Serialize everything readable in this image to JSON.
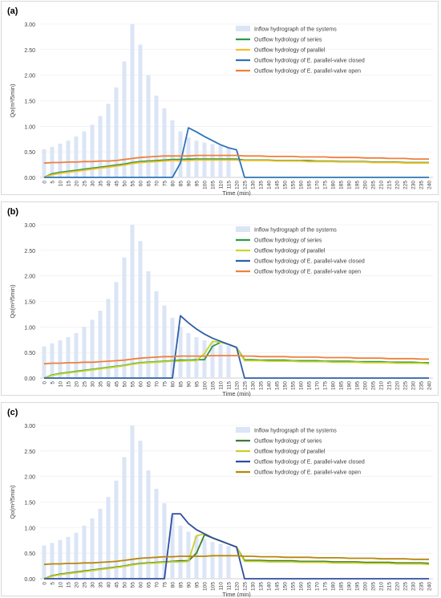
{
  "chart_data": [
    {
      "type": "bar",
      "panel_label": "(a)",
      "xlabel": "Time (min)",
      "ylabel": "Qo(m³/5min)",
      "ylim": [
        0,
        3
      ],
      "yticks": [
        "0.00",
        "0.50",
        "1.00",
        "1.50",
        "2.00",
        "2.50",
        "3.00"
      ],
      "x": [
        0,
        5,
        10,
        15,
        20,
        25,
        30,
        35,
        40,
        45,
        50,
        55,
        60,
        65,
        70,
        75,
        80,
        85,
        90,
        95,
        100,
        105,
        110,
        115,
        120,
        125,
        130,
        135,
        140,
        145,
        150,
        155,
        160,
        165,
        170,
        175,
        180,
        185,
        190,
        195,
        200,
        205,
        210,
        215,
        220,
        225,
        230,
        235,
        240
      ],
      "legend_position": "top-right",
      "series": [
        {
          "name": "Inflow hydrograph of the systems",
          "kind": "bar",
          "color": "#dbe5f5",
          "values": [
            0.55,
            0.6,
            0.66,
            0.72,
            0.8,
            0.9,
            1.03,
            1.2,
            1.44,
            1.76,
            2.27,
            3.0,
            2.6,
            2.0,
            1.6,
            1.35,
            1.12,
            0.9,
            0.78,
            0.72,
            0.68,
            0.65,
            0.62,
            0.58,
            null,
            null,
            null,
            null,
            null,
            null,
            null,
            null,
            null,
            null,
            null,
            null,
            null,
            null,
            null,
            null,
            null,
            null,
            null,
            null,
            null,
            null,
            null,
            null,
            null
          ]
        },
        {
          "name": "Outflow hydrology of series",
          "kind": "line",
          "color": "#2e9b45",
          "values": [
            0,
            0.07,
            0.1,
            0.12,
            0.14,
            0.16,
            0.18,
            0.2,
            0.22,
            0.24,
            0.26,
            0.29,
            0.31,
            0.32,
            0.33,
            0.34,
            0.35,
            0.35,
            0.36,
            0.36,
            0.36,
            0.36,
            0.36,
            0.36,
            0.36,
            0.34,
            0.34,
            0.34,
            0.34,
            0.33,
            0.33,
            0.33,
            0.33,
            0.33,
            0.32,
            0.32,
            0.32,
            0.31,
            0.31,
            0.31,
            0.31,
            0.3,
            0.3,
            0.3,
            0.3,
            0.29,
            0.29,
            0.29,
            0.29
          ]
        },
        {
          "name": "Outflow hydrology of parallel",
          "kind": "line",
          "color": "#f5bf2a",
          "values": [
            0,
            0.05,
            0.08,
            0.1,
            0.12,
            0.14,
            0.16,
            0.18,
            0.2,
            0.22,
            0.24,
            0.27,
            0.29,
            0.3,
            0.31,
            0.32,
            0.33,
            0.33,
            0.33,
            0.34,
            0.34,
            0.34,
            0.34,
            0.34,
            0.34,
            0.33,
            0.33,
            0.33,
            0.33,
            0.32,
            0.32,
            0.32,
            0.32,
            0.31,
            0.31,
            0.31,
            0.31,
            0.3,
            0.3,
            0.3,
            0.3,
            0.29,
            0.29,
            0.29,
            0.29,
            0.28,
            0.28,
            0.28,
            0.28
          ]
        },
        {
          "name": "Outflow hydrology of E. parallel-valve closed",
          "kind": "line",
          "color": "#2e75b6",
          "values": [
            0,
            0,
            0,
            0,
            0,
            0,
            0,
            0,
            0,
            0,
            0,
            0,
            0,
            0,
            0,
            0,
            0,
            0.28,
            0.97,
            0.89,
            0.8,
            0.72,
            0.64,
            0.58,
            0.54,
            0,
            0,
            0,
            0,
            0,
            0,
            0,
            0,
            0,
            0,
            0,
            0,
            0,
            0,
            0,
            0,
            0,
            0,
            0,
            0,
            0,
            0,
            0,
            0
          ]
        },
        {
          "name": "Outflow hydrology of E. parallel-valve open",
          "kind": "line",
          "color": "#f07f3c",
          "values": [
            0.28,
            0.29,
            0.29,
            0.3,
            0.3,
            0.31,
            0.31,
            0.32,
            0.32,
            0.33,
            0.35,
            0.37,
            0.39,
            0.4,
            0.41,
            0.42,
            0.42,
            0.42,
            0.42,
            0.43,
            0.43,
            0.43,
            0.43,
            0.43,
            0.43,
            0.42,
            0.42,
            0.42,
            0.41,
            0.41,
            0.41,
            0.41,
            0.4,
            0.4,
            0.4,
            0.4,
            0.39,
            0.39,
            0.39,
            0.39,
            0.38,
            0.38,
            0.38,
            0.37,
            0.37,
            0.37,
            0.36,
            0.36,
            0.36
          ]
        }
      ]
    },
    {
      "type": "bar",
      "panel_label": "(b)",
      "xlabel": "Time (min)",
      "ylabel": "Qo(m³/5min)",
      "ylim": [
        0,
        3
      ],
      "yticks": [
        "0.00",
        "0.50",
        "1.00",
        "1.50",
        "2.00",
        "2.50",
        "3.00"
      ],
      "x": [
        0,
        5,
        10,
        15,
        20,
        25,
        30,
        35,
        40,
        45,
        50,
        55,
        60,
        65,
        70,
        75,
        80,
        85,
        90,
        95,
        100,
        105,
        110,
        115,
        120,
        125,
        130,
        135,
        140,
        145,
        150,
        155,
        160,
        165,
        170,
        175,
        180,
        185,
        190,
        195,
        200,
        205,
        210,
        215,
        220,
        225,
        230,
        235,
        240
      ],
      "legend_position": "top-right",
      "series": [
        {
          "name": "Inflow hydrograph of the systems",
          "kind": "bar",
          "color": "#dbe5f5",
          "values": [
            0.62,
            0.68,
            0.74,
            0.8,
            0.88,
            1.0,
            1.14,
            1.32,
            1.55,
            1.88,
            2.36,
            3.0,
            2.68,
            2.09,
            1.7,
            1.42,
            1.18,
            1.0,
            0.88,
            0.8,
            0.74,
            0.7,
            0.66,
            0.63,
            null,
            null,
            null,
            null,
            null,
            null,
            null,
            null,
            null,
            null,
            null,
            null,
            null,
            null,
            null,
            null,
            null,
            null,
            null,
            null,
            null,
            null,
            null,
            null,
            null
          ]
        },
        {
          "name": "Outflow hydrology of series",
          "kind": "line",
          "color": "#2e9b45",
          "values": [
            0,
            0.06,
            0.09,
            0.11,
            0.13,
            0.15,
            0.17,
            0.19,
            0.21,
            0.23,
            0.25,
            0.28,
            0.3,
            0.31,
            0.32,
            0.33,
            0.34,
            0.35,
            0.35,
            0.36,
            0.36,
            0.62,
            0.7,
            0.66,
            0.6,
            0.36,
            0.36,
            0.35,
            0.35,
            0.35,
            0.35,
            0.34,
            0.34,
            0.34,
            0.34,
            0.33,
            0.33,
            0.33,
            0.33,
            0.32,
            0.32,
            0.32,
            0.32,
            0.31,
            0.31,
            0.31,
            0.31,
            0.3,
            0.3
          ]
        },
        {
          "name": "Outflow hydrology of parallel",
          "kind": "line",
          "color": "#c9d62c",
          "values": [
            0,
            0.05,
            0.08,
            0.1,
            0.12,
            0.14,
            0.16,
            0.18,
            0.2,
            0.22,
            0.24,
            0.27,
            0.29,
            0.3,
            0.31,
            0.32,
            0.33,
            0.33,
            0.34,
            0.34,
            0.48,
            0.72,
            0.7,
            0.66,
            0.6,
            0.34,
            0.34,
            0.34,
            0.33,
            0.33,
            0.33,
            0.33,
            0.32,
            0.32,
            0.32,
            0.32,
            0.31,
            0.31,
            0.31,
            0.31,
            0.3,
            0.3,
            0.3,
            0.3,
            0.29,
            0.29,
            0.29,
            0.29,
            0.28
          ]
        },
        {
          "name": "Outflow hydrology of E. parallel-valve closed",
          "kind": "line",
          "color": "#2e5fa8",
          "values": [
            0,
            0,
            0,
            0,
            0,
            0,
            0,
            0,
            0,
            0,
            0,
            0,
            0,
            0,
            0,
            0,
            0,
            1.22,
            1.08,
            0.96,
            0.86,
            0.78,
            0.72,
            0.66,
            0.6,
            0,
            0,
            0,
            0,
            0,
            0,
            0,
            0,
            0,
            0,
            0,
            0,
            0,
            0,
            0,
            0,
            0,
            0,
            0,
            0,
            0,
            0,
            0,
            0
          ]
        },
        {
          "name": "Outflow hydrology of E. parallel-valve open",
          "kind": "line",
          "color": "#f07f3c",
          "values": [
            0.28,
            0.29,
            0.29,
            0.3,
            0.3,
            0.31,
            0.31,
            0.32,
            0.33,
            0.34,
            0.35,
            0.37,
            0.39,
            0.4,
            0.41,
            0.42,
            0.42,
            0.43,
            0.43,
            0.43,
            0.43,
            0.44,
            0.44,
            0.44,
            0.44,
            0.43,
            0.43,
            0.42,
            0.42,
            0.42,
            0.42,
            0.41,
            0.41,
            0.41,
            0.41,
            0.4,
            0.4,
            0.4,
            0.4,
            0.39,
            0.39,
            0.39,
            0.39,
            0.38,
            0.38,
            0.38,
            0.38,
            0.37,
            0.37
          ]
        }
      ]
    },
    {
      "type": "bar",
      "panel_label": "(c)",
      "xlabel": "Time (min)",
      "ylabel": "Qo(m³/5min)",
      "ylim": [
        0,
        3
      ],
      "yticks": [
        "0.00",
        "0.50",
        "1.00",
        "1.50",
        "2.00",
        "2.50",
        "3.00"
      ],
      "x": [
        0,
        5,
        10,
        15,
        20,
        25,
        30,
        35,
        40,
        45,
        50,
        55,
        60,
        65,
        70,
        75,
        80,
        85,
        90,
        95,
        100,
        105,
        110,
        115,
        120,
        125,
        130,
        135,
        140,
        145,
        150,
        155,
        160,
        165,
        170,
        175,
        180,
        185,
        190,
        195,
        200,
        205,
        210,
        215,
        220,
        225,
        230,
        235,
        240
      ],
      "legend_position": "top-right",
      "series": [
        {
          "name": "Inflow hydrograph of the systems",
          "kind": "bar",
          "color": "#dbe5f5",
          "values": [
            0.65,
            0.7,
            0.76,
            0.82,
            0.9,
            1.04,
            1.18,
            1.37,
            1.6,
            1.92,
            2.38,
            3.0,
            2.7,
            2.12,
            1.76,
            1.48,
            1.24,
            1.04,
            0.92,
            0.84,
            0.78,
            0.72,
            0.68,
            0.64,
            null,
            null,
            null,
            null,
            null,
            null,
            null,
            null,
            null,
            null,
            null,
            null,
            null,
            null,
            null,
            null,
            null,
            null,
            null,
            null,
            null,
            null,
            null,
            null,
            null
          ]
        },
        {
          "name": "Outflow hydrology of series",
          "kind": "line",
          "color": "#3a7d2e",
          "values": [
            0,
            0.06,
            0.09,
            0.11,
            0.13,
            0.15,
            0.17,
            0.19,
            0.21,
            0.23,
            0.25,
            0.28,
            0.3,
            0.31,
            0.32,
            0.33,
            0.34,
            0.35,
            0.35,
            0.5,
            0.86,
            0.8,
            0.74,
            0.68,
            0.62,
            0.36,
            0.36,
            0.36,
            0.35,
            0.35,
            0.35,
            0.35,
            0.34,
            0.34,
            0.34,
            0.34,
            0.33,
            0.33,
            0.33,
            0.33,
            0.32,
            0.32,
            0.32,
            0.32,
            0.31,
            0.31,
            0.31,
            0.31,
            0.3
          ]
        },
        {
          "name": "Outflow hydrology of parallel",
          "kind": "line",
          "color": "#c9cf2a",
          "values": [
            0,
            0.05,
            0.08,
            0.1,
            0.12,
            0.14,
            0.16,
            0.18,
            0.2,
            0.22,
            0.24,
            0.27,
            0.29,
            0.3,
            0.31,
            0.32,
            0.33,
            0.33,
            0.34,
            0.84,
            0.88,
            0.8,
            0.74,
            0.68,
            0.62,
            0.34,
            0.34,
            0.34,
            0.33,
            0.33,
            0.33,
            0.33,
            0.32,
            0.32,
            0.32,
            0.32,
            0.31,
            0.31,
            0.31,
            0.31,
            0.3,
            0.3,
            0.3,
            0.3,
            0.29,
            0.29,
            0.29,
            0.29,
            0.28
          ]
        },
        {
          "name": "Outflow hydrology of E. parallel-valve closed",
          "kind": "line",
          "color": "#2f4ea0",
          "values": [
            0,
            0,
            0,
            0,
            0,
            0,
            0,
            0,
            0,
            0,
            0,
            0,
            0,
            0,
            0,
            0,
            1.27,
            1.27,
            1.08,
            0.96,
            0.88,
            0.8,
            0.74,
            0.68,
            0.62,
            0,
            0,
            0,
            0,
            0,
            0,
            0,
            0,
            0,
            0,
            0,
            0,
            0,
            0,
            0,
            0,
            0,
            0,
            0,
            0,
            0,
            0,
            0,
            0
          ]
        },
        {
          "name": "Outflow hydrology of E. parallel-valve open",
          "kind": "line",
          "color": "#b8860b",
          "values": [
            0.28,
            0.29,
            0.29,
            0.3,
            0.3,
            0.31,
            0.31,
            0.32,
            0.33,
            0.34,
            0.36,
            0.38,
            0.4,
            0.41,
            0.42,
            0.43,
            0.43,
            0.44,
            0.44,
            0.44,
            0.44,
            0.45,
            0.45,
            0.45,
            0.45,
            0.44,
            0.44,
            0.43,
            0.43,
            0.43,
            0.42,
            0.42,
            0.42,
            0.42,
            0.41,
            0.41,
            0.41,
            0.41,
            0.4,
            0.4,
            0.4,
            0.4,
            0.39,
            0.39,
            0.39,
            0.39,
            0.38,
            0.38,
            0.38
          ]
        }
      ]
    }
  ]
}
